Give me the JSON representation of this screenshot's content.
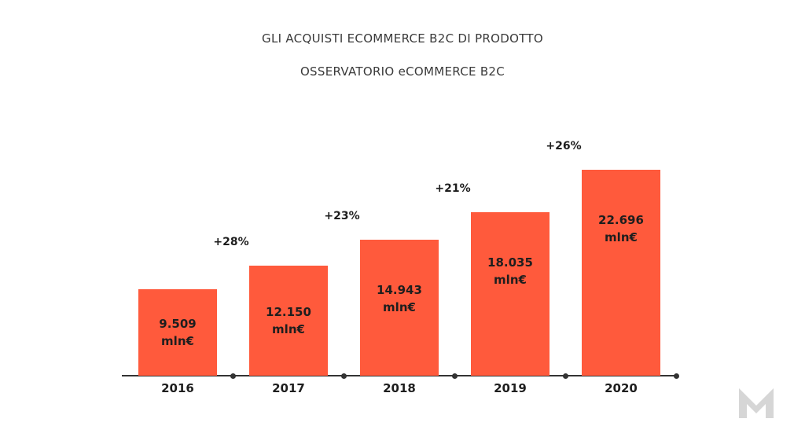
{
  "chart_data": {
    "type": "bar",
    "title": "GLI ACQUISTI ECOMMERCE B2C DI PRODOTTO",
    "subtitle": "OSSERVATORIO eCOMMERCE B2C",
    "categories": [
      "2016",
      "2017",
      "2018",
      "2019",
      "2020"
    ],
    "values": [
      9509,
      12150,
      14943,
      18035,
      22696
    ],
    "value_labels": [
      "9.509 mln€",
      "12.150 mln€",
      "14.943 mln€",
      "18.035 mln€",
      "22.696 mln€"
    ],
    "annotations": [
      "+28%",
      "+23%",
      "+21%",
      "+26%"
    ],
    "color": "#ff5a3c"
  }
}
